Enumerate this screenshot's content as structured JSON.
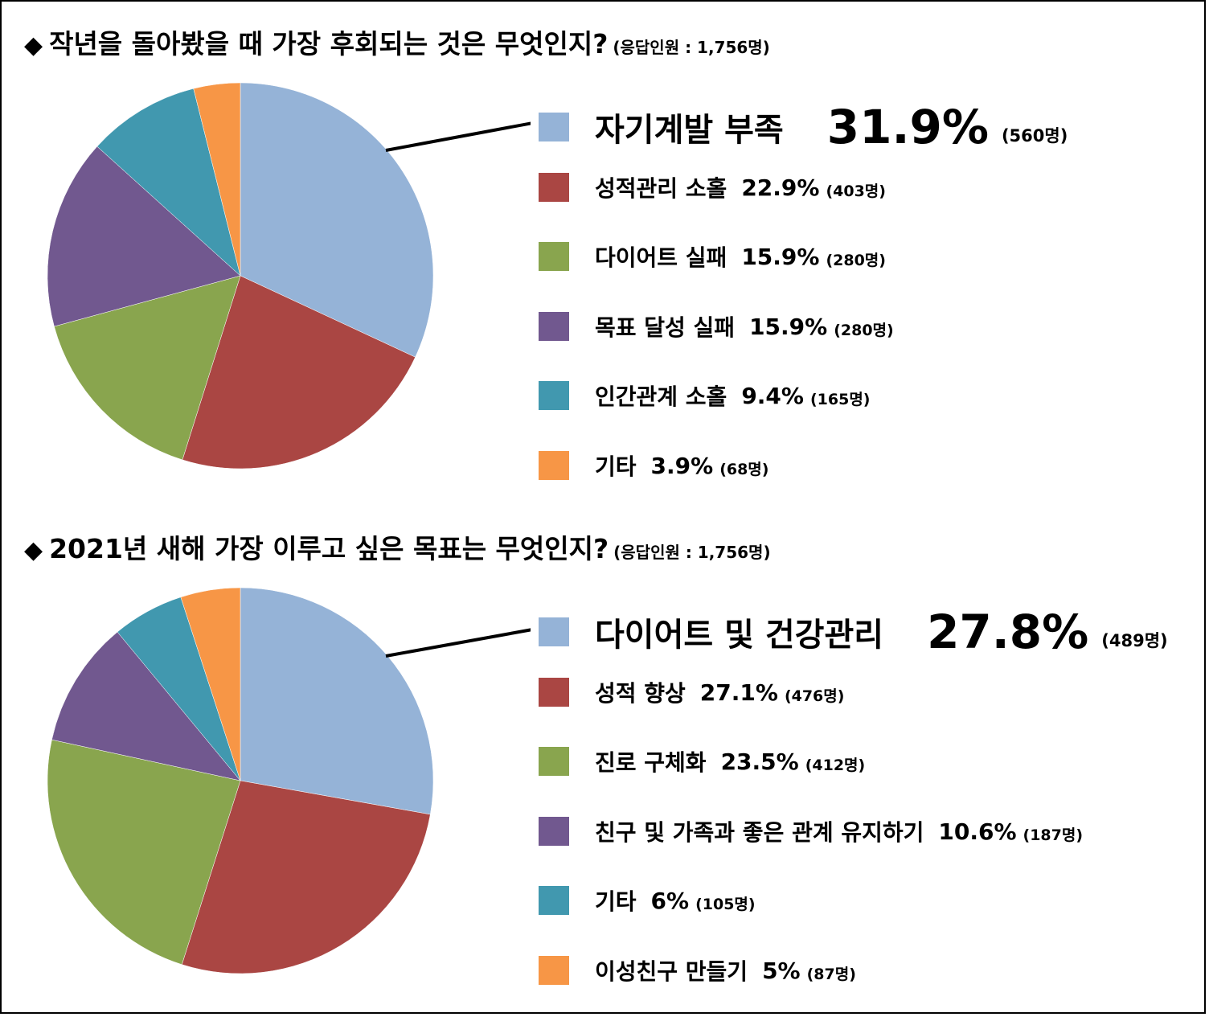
{
  "charts": [
    {
      "diamond": "◆",
      "question": "작년을 돌아봤을 때 가장 후회되는 것은 무엇인지?",
      "note": "(응답인원 : 1,756명)"
    },
    {
      "diamond": "◆",
      "question": "2021년 새해 가장 이루고 싶은 목표는 무엇인지?",
      "note": "(응답인원 : 1,756명)"
    }
  ],
  "chart_data": [
    {
      "type": "pie",
      "title": "작년을 돌아봤을 때 가장 후회되는 것은 무엇인지?",
      "respondents": "(응답인원 : 1,756명)",
      "legend": "right",
      "slices": [
        {
          "label": "자기계발 부족",
          "value": 31.9,
          "pct_text": "31.9%",
          "count_text": "(560명)",
          "color": "#95B3D7"
        },
        {
          "label": "성적관리 소홀",
          "value": 22.9,
          "pct_text": "22.9%",
          "count_text": "(403명)",
          "color": "#AA4643"
        },
        {
          "label": "다이어트 실패",
          "value": 15.9,
          "pct_text": "15.9%",
          "count_text": "(280명)",
          "color": "#89A54E"
        },
        {
          "label": "목표 달성 실패",
          "value": 15.9,
          "pct_text": "15.9%",
          "count_text": "(280명)",
          "color": "#71588F"
        },
        {
          "label": "인간관계 소홀",
          "value": 9.4,
          "pct_text": "9.4%",
          "count_text": "(165명)",
          "color": "#4198AF"
        },
        {
          "label": "기타",
          "value": 3.9,
          "pct_text": "3.9%",
          "count_text": "(68명)",
          "color": "#F79646"
        }
      ]
    },
    {
      "type": "pie",
      "title": "2021년 새해 가장 이루고 싶은 목표는 무엇인지?",
      "respondents": "(응답인원 : 1,756명)",
      "legend": "right",
      "slices": [
        {
          "label": "다이어트 및 건강관리",
          "value": 27.8,
          "pct_text": "27.8%",
          "count_text": "(489명)",
          "color": "#95B3D7"
        },
        {
          "label": "성적 향상",
          "value": 27.1,
          "pct_text": "27.1%",
          "count_text": "(476명)",
          "color": "#AA4643"
        },
        {
          "label": "진로 구체화",
          "value": 23.5,
          "pct_text": "23.5%",
          "count_text": "(412명)",
          "color": "#89A54E"
        },
        {
          "label": "친구 및 가족과 좋은 관계 유지하기",
          "value": 10.6,
          "pct_text": "10.6%",
          "count_text": "(187명)",
          "color": "#71588F"
        },
        {
          "label": "기타",
          "value": 6,
          "pct_text": "6%",
          "count_text": "(105명)",
          "color": "#4198AF"
        },
        {
          "label": "이성친구 만들기",
          "value": 5,
          "pct_text": "5%",
          "count_text": "(87명)",
          "color": "#F79646"
        }
      ]
    }
  ]
}
